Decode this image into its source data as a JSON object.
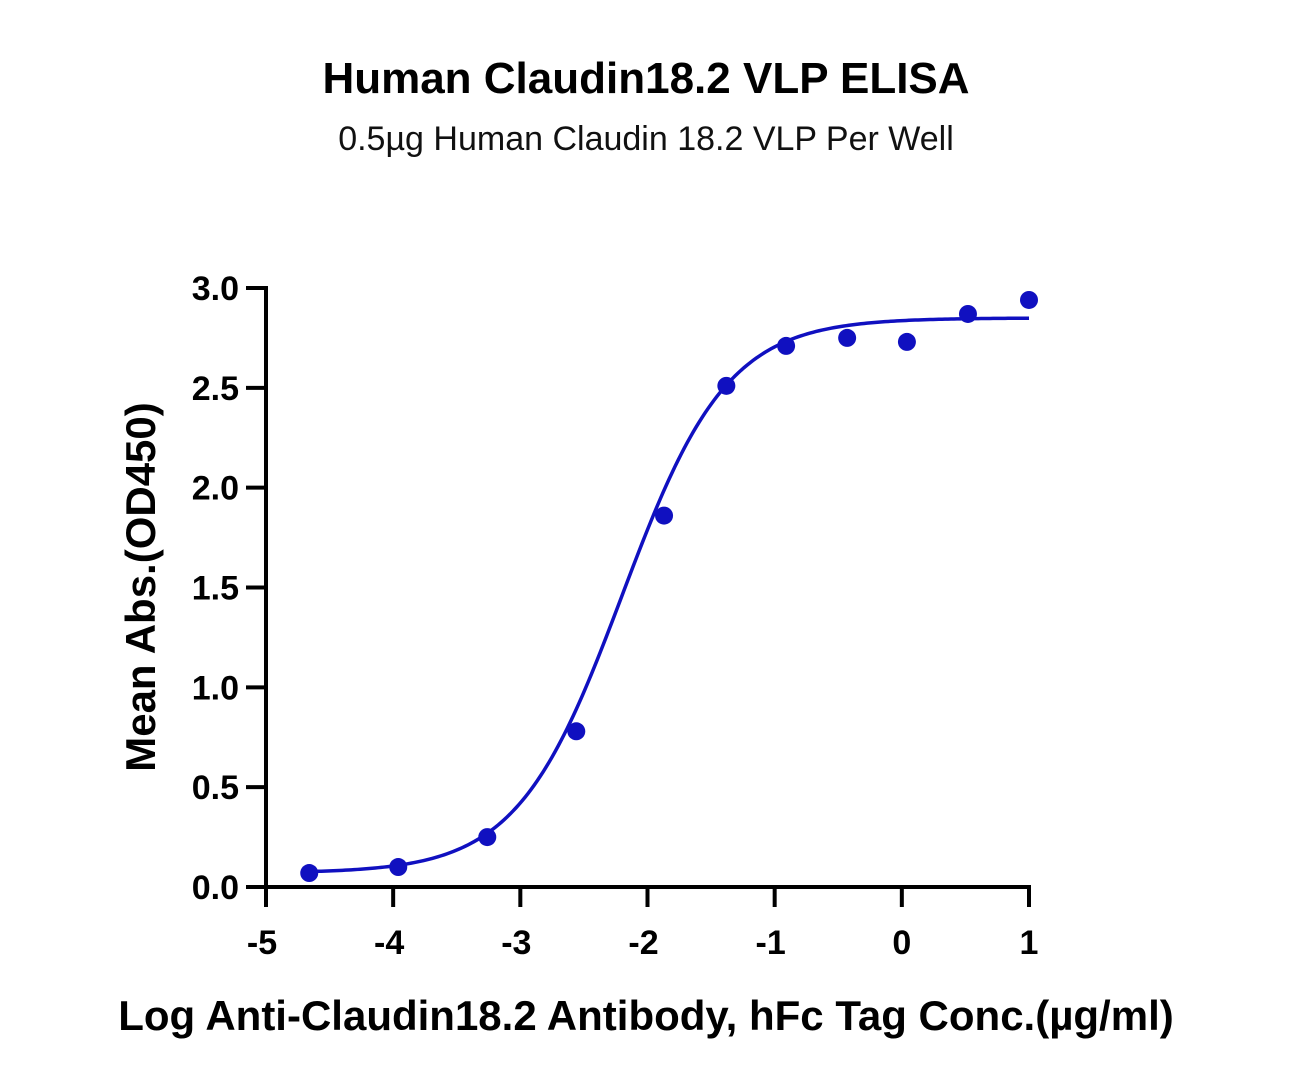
{
  "chart_data": {
    "type": "scatter",
    "title": "Human Claudin18.2 VLP ELISA",
    "subtitle": "0.5µg Human Claudin 18.2 VLP Per Well",
    "xlabel": "Log Anti-Claudin18.2 Antibody, hFc Tag Conc.(µg/ml)",
    "ylabel": "Mean Abs.(OD450)",
    "xlim": [
      -5,
      1
    ],
    "ylim": [
      0,
      3.0
    ],
    "x_ticks": [
      "-5",
      "-4",
      "-3",
      "-2",
      "-1",
      "0",
      "1"
    ],
    "y_ticks": [
      "0.0",
      "0.5",
      "1.0",
      "1.5",
      "2.0",
      "2.5",
      "3.0"
    ],
    "grid": false,
    "series": [
      {
        "color": "#1010c0",
        "x": [
          -4.66,
          -3.96,
          -3.26,
          -2.56,
          -1.87,
          -1.38,
          -0.91,
          -0.43,
          0.04,
          0.52,
          1.0
        ],
        "y": [
          0.07,
          0.1,
          0.25,
          0.78,
          1.86,
          2.51,
          2.71,
          2.75,
          2.73,
          2.87,
          2.94
        ],
        "fit": {
          "model": "4PL",
          "bottom": 0.07,
          "top": 2.85,
          "logEC50": -2.2,
          "hill": 1.05,
          "x_range": [
            -4.66,
            1.0
          ]
        }
      }
    ]
  }
}
